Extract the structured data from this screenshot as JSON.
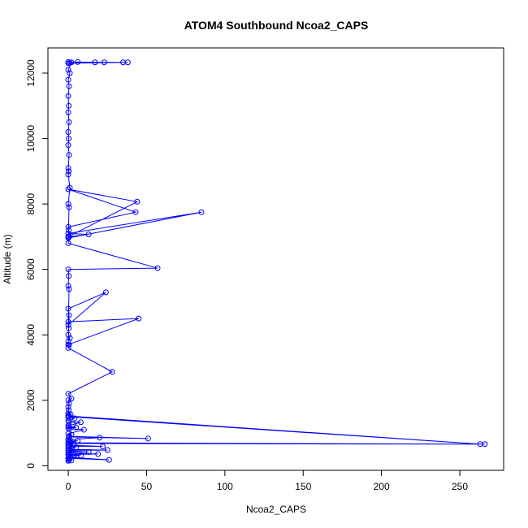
{
  "chart_data": {
    "type": "line",
    "title": "ATOM4 Southbound Ncoa2_CAPS",
    "xlabel": "Ncoa2_CAPS",
    "ylabel": "Altitude (m)",
    "xlim": [
      -13,
      278
    ],
    "ylim": [
      -140,
      12770
    ],
    "xticks": [
      0,
      50,
      100,
      150,
      200,
      250
    ],
    "yticks": [
      0,
      2000,
      4000,
      6000,
      8000,
      10000,
      12000
    ],
    "grid": false,
    "legend": "none",
    "colors": {
      "series": "#0000ff",
      "axes": "#000000",
      "background": "#ffffff"
    },
    "series": [
      {
        "points": [
          [
            0,
            150
          ],
          [
            0.3,
            180
          ],
          [
            2,
            160
          ],
          [
            1,
            200
          ],
          [
            0,
            230
          ],
          [
            26,
            180
          ],
          [
            0.5,
            260
          ],
          [
            0.2,
            300
          ],
          [
            8,
            310
          ],
          [
            4,
            330
          ],
          [
            0,
            340
          ],
          [
            19,
            360
          ],
          [
            1,
            380
          ],
          [
            0,
            410
          ],
          [
            13,
            420
          ],
          [
            2,
            450
          ],
          [
            0,
            470
          ],
          [
            25,
            480
          ],
          [
            1,
            500
          ],
          [
            0,
            530
          ],
          [
            5,
            560
          ],
          [
            0,
            600
          ],
          [
            22,
            590
          ],
          [
            0.5,
            630
          ],
          [
            3,
            650
          ],
          [
            0,
            680
          ],
          [
            266,
            660
          ],
          [
            1,
            700
          ],
          [
            0,
            720
          ],
          [
            6,
            760
          ],
          [
            1,
            780
          ],
          [
            0,
            800
          ],
          [
            20,
            860
          ],
          [
            0.3,
            880
          ],
          [
            51,
            830
          ],
          [
            0.5,
            900
          ],
          [
            2,
            950
          ],
          [
            0,
            980
          ],
          [
            10,
            1100
          ],
          [
            1,
            1130
          ],
          [
            0,
            1150
          ],
          [
            5,
            1170
          ],
          [
            0.3,
            1200
          ],
          [
            0,
            1240
          ],
          [
            3,
            1260
          ],
          [
            8,
            1330
          ],
          [
            0.5,
            1350
          ],
          [
            0,
            1380
          ],
          [
            4,
            1450
          ],
          [
            0,
            1500
          ],
          [
            263,
            660
          ],
          [
            0.5,
            1520
          ],
          [
            0,
            1540
          ],
          [
            1.5,
            1570
          ],
          [
            0,
            1600
          ],
          [
            0.3,
            1700
          ],
          [
            0,
            1800
          ],
          [
            0.5,
            1900
          ],
          [
            0,
            2000
          ],
          [
            2,
            2050
          ],
          [
            0,
            2200
          ],
          [
            28,
            2870
          ],
          [
            0,
            3600
          ],
          [
            0.5,
            3700
          ],
          [
            0,
            3800
          ],
          [
            1,
            3900
          ],
          [
            0,
            4000
          ],
          [
            0.3,
            4200
          ],
          [
            0,
            4400
          ],
          [
            45,
            4500
          ],
          [
            0,
            3700
          ],
          [
            0.5,
            4600
          ],
          [
            0,
            4800
          ],
          [
            24,
            5300
          ],
          [
            0,
            4300
          ],
          [
            0.5,
            5400
          ],
          [
            0,
            5500
          ],
          [
            0.3,
            5800
          ],
          [
            0,
            6000
          ],
          [
            57,
            6040
          ],
          [
            0,
            6800
          ],
          [
            0.5,
            7000
          ],
          [
            13,
            7070
          ],
          [
            0,
            7100
          ],
          [
            85,
            7750
          ],
          [
            0,
            6960
          ],
          [
            0.3,
            7200
          ],
          [
            0,
            7300
          ],
          [
            43,
            7750
          ],
          [
            0,
            8450
          ],
          [
            44,
            8070
          ],
          [
            0,
            7000
          ],
          [
            0.5,
            7900
          ],
          [
            0,
            8000
          ],
          [
            1,
            8500
          ],
          [
            0,
            8900
          ],
          [
            0.3,
            9000
          ],
          [
            0,
            9100
          ],
          [
            0.5,
            9500
          ],
          [
            0,
            9800
          ],
          [
            0.3,
            10000
          ],
          [
            0,
            10200
          ],
          [
            0.5,
            10500
          ],
          [
            0,
            10800
          ],
          [
            0.3,
            11000
          ],
          [
            0,
            11300
          ],
          [
            0.5,
            11600
          ],
          [
            0,
            11800
          ],
          [
            1,
            12000
          ],
          [
            0,
            12100
          ],
          [
            2,
            12330
          ],
          [
            6,
            12340
          ],
          [
            17,
            12330
          ],
          [
            23,
            12330
          ],
          [
            35,
            12330
          ],
          [
            38,
            12330
          ],
          [
            0,
            12300
          ],
          [
            1,
            12310
          ],
          [
            0,
            12340
          ]
        ]
      }
    ]
  }
}
